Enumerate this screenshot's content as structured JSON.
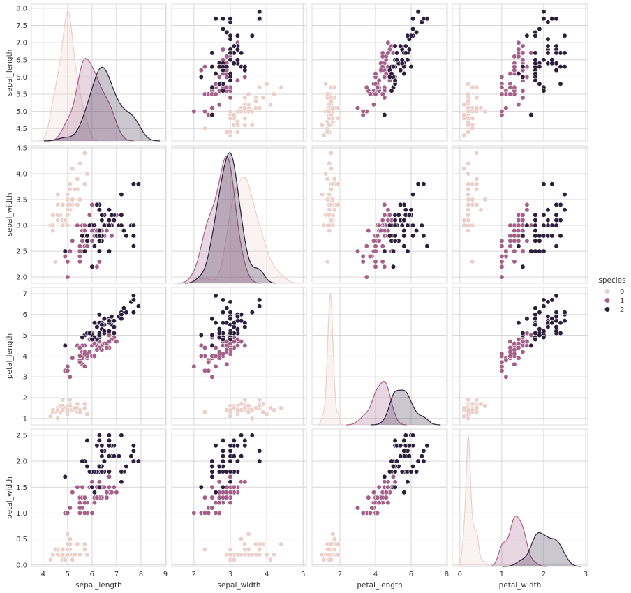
{
  "chart_data": {
    "type": "scatter",
    "title": "",
    "variables": [
      "sepal_length",
      "sepal_width",
      "petal_length",
      "petal_width"
    ],
    "axis_ranges": {
      "sepal_length": [
        3.52,
        9.03
      ],
      "sepal_width": [
        1.39,
        5.09
      ],
      "petal_length": [
        0.43,
        8.04
      ],
      "petal_width": [
        -0.18,
        3.05
      ]
    },
    "y_ranges": {
      "sepal_length": [
        4.14,
        8.12
      ],
      "sepal_width": [
        1.88,
        4.54
      ],
      "petal_length": [
        0.69,
        7.3
      ],
      "petal_width": [
        -0.03,
        2.62
      ]
    },
    "x_ticks": {
      "sepal_length": [
        "4",
        "5",
        "6",
        "7",
        "8",
        "9"
      ],
      "sepal_width": [
        "2",
        "3",
        "4",
        "5"
      ],
      "petal_length": [
        "2",
        "4",
        "6",
        "8"
      ],
      "petal_width": [
        "0",
        "1",
        "2",
        "3"
      ]
    },
    "y_ticks": {
      "sepal_length": [
        "4.5",
        "5.0",
        "5.5",
        "6.0",
        "6.5",
        "7.0",
        "7.5",
        "8.0"
      ],
      "sepal_width": [
        "2.0",
        "2.5",
        "3.0",
        "3.5",
        "4.0",
        "4.5"
      ],
      "petal_length": [
        "1",
        "2",
        "3",
        "4",
        "5",
        "6",
        "7"
      ],
      "petal_width": [
        "0.0",
        "0.5",
        "1.0",
        "1.5",
        "2.0",
        "2.5"
      ]
    },
    "diag_kind": "kde",
    "grid": true,
    "legend": {
      "title": "species",
      "placement": "right",
      "entries": [
        "0",
        "1",
        "2"
      ]
    },
    "colors": [
      "#ebcfcb",
      "#a5608a",
      "#2d1e3e"
    ],
    "series": [
      {
        "name": "0",
        "rows": [
          [
            5.1,
            3.5,
            1.4,
            0.2
          ],
          [
            4.9,
            3.0,
            1.4,
            0.2
          ],
          [
            4.7,
            3.2,
            1.3,
            0.2
          ],
          [
            4.6,
            3.1,
            1.5,
            0.2
          ],
          [
            5.0,
            3.6,
            1.4,
            0.2
          ],
          [
            5.4,
            3.9,
            1.7,
            0.4
          ],
          [
            4.6,
            3.4,
            1.4,
            0.3
          ],
          [
            5.0,
            3.4,
            1.5,
            0.2
          ],
          [
            4.4,
            2.9,
            1.4,
            0.2
          ],
          [
            4.9,
            3.1,
            1.5,
            0.1
          ],
          [
            5.4,
            3.7,
            1.5,
            0.2
          ],
          [
            4.8,
            3.4,
            1.6,
            0.2
          ],
          [
            4.8,
            3.0,
            1.4,
            0.1
          ],
          [
            4.3,
            3.0,
            1.1,
            0.1
          ],
          [
            5.8,
            4.0,
            1.2,
            0.2
          ],
          [
            5.7,
            4.4,
            1.5,
            0.4
          ],
          [
            5.4,
            3.9,
            1.3,
            0.4
          ],
          [
            5.1,
            3.5,
            1.4,
            0.3
          ],
          [
            5.7,
            3.8,
            1.7,
            0.3
          ],
          [
            5.1,
            3.8,
            1.5,
            0.3
          ],
          [
            5.4,
            3.4,
            1.7,
            0.2
          ],
          [
            5.1,
            3.7,
            1.5,
            0.4
          ],
          [
            4.6,
            3.6,
            1.0,
            0.2
          ],
          [
            5.1,
            3.3,
            1.7,
            0.5
          ],
          [
            4.8,
            3.4,
            1.9,
            0.2
          ],
          [
            5.0,
            3.0,
            1.6,
            0.2
          ],
          [
            5.0,
            3.4,
            1.6,
            0.4
          ],
          [
            5.2,
            3.5,
            1.5,
            0.2
          ],
          [
            5.2,
            3.4,
            1.4,
            0.2
          ],
          [
            4.7,
            3.2,
            1.6,
            0.2
          ],
          [
            4.8,
            3.1,
            1.6,
            0.2
          ],
          [
            5.4,
            3.4,
            1.5,
            0.4
          ],
          [
            5.2,
            4.1,
            1.5,
            0.1
          ],
          [
            5.5,
            4.2,
            1.4,
            0.2
          ],
          [
            4.9,
            3.1,
            1.5,
            0.1
          ],
          [
            5.0,
            3.2,
            1.2,
            0.2
          ],
          [
            5.5,
            3.5,
            1.3,
            0.2
          ],
          [
            4.9,
            3.1,
            1.5,
            0.1
          ],
          [
            4.4,
            3.0,
            1.3,
            0.2
          ],
          [
            5.1,
            3.4,
            1.5,
            0.2
          ],
          [
            5.0,
            3.5,
            1.3,
            0.3
          ],
          [
            4.5,
            2.3,
            1.3,
            0.3
          ],
          [
            4.4,
            3.2,
            1.3,
            0.2
          ],
          [
            5.0,
            3.5,
            1.6,
            0.6
          ],
          [
            5.1,
            3.8,
            1.9,
            0.4
          ],
          [
            4.8,
            3.0,
            1.4,
            0.3
          ],
          [
            5.1,
            3.8,
            1.6,
            0.2
          ],
          [
            4.6,
            3.2,
            1.4,
            0.2
          ],
          [
            5.3,
            3.7,
            1.5,
            0.2
          ],
          [
            5.0,
            3.3,
            1.4,
            0.2
          ]
        ]
      },
      {
        "name": "1",
        "rows": [
          [
            7.0,
            3.2,
            4.7,
            1.4
          ],
          [
            6.4,
            3.2,
            4.5,
            1.5
          ],
          [
            6.9,
            3.1,
            4.9,
            1.5
          ],
          [
            5.5,
            2.3,
            4.0,
            1.3
          ],
          [
            6.5,
            2.8,
            4.6,
            1.5
          ],
          [
            5.7,
            2.8,
            4.5,
            1.3
          ],
          [
            6.3,
            3.3,
            4.7,
            1.6
          ],
          [
            4.9,
            2.4,
            3.3,
            1.0
          ],
          [
            6.6,
            2.9,
            4.6,
            1.3
          ],
          [
            5.2,
            2.7,
            3.9,
            1.4
          ],
          [
            5.0,
            2.0,
            3.5,
            1.0
          ],
          [
            5.9,
            3.0,
            4.2,
            1.5
          ],
          [
            6.0,
            2.2,
            4.0,
            1.0
          ],
          [
            6.1,
            2.9,
            4.7,
            1.4
          ],
          [
            5.6,
            2.9,
            3.6,
            1.3
          ],
          [
            6.7,
            3.1,
            4.4,
            1.4
          ],
          [
            5.6,
            3.0,
            4.5,
            1.5
          ],
          [
            5.8,
            2.7,
            4.1,
            1.0
          ],
          [
            6.2,
            2.2,
            4.5,
            1.5
          ],
          [
            5.6,
            2.5,
            3.9,
            1.1
          ],
          [
            5.9,
            3.2,
            4.8,
            1.8
          ],
          [
            6.1,
            2.8,
            4.0,
            1.3
          ],
          [
            6.3,
            2.5,
            4.9,
            1.5
          ],
          [
            6.1,
            2.8,
            4.7,
            1.2
          ],
          [
            6.4,
            2.9,
            4.3,
            1.3
          ],
          [
            6.6,
            3.0,
            4.4,
            1.4
          ],
          [
            6.8,
            2.8,
            4.8,
            1.4
          ],
          [
            6.7,
            3.0,
            5.0,
            1.7
          ],
          [
            6.0,
            2.9,
            4.5,
            1.5
          ],
          [
            5.7,
            2.6,
            3.5,
            1.0
          ],
          [
            5.5,
            2.4,
            3.8,
            1.1
          ],
          [
            5.5,
            2.4,
            3.7,
            1.0
          ],
          [
            5.8,
            2.7,
            3.9,
            1.2
          ],
          [
            6.0,
            2.7,
            5.1,
            1.6
          ],
          [
            5.4,
            3.0,
            4.5,
            1.5
          ],
          [
            6.0,
            3.4,
            4.5,
            1.6
          ],
          [
            6.7,
            3.1,
            4.7,
            1.5
          ],
          [
            6.3,
            2.3,
            4.4,
            1.3
          ],
          [
            5.6,
            3.0,
            4.1,
            1.3
          ],
          [
            5.5,
            2.5,
            4.0,
            1.3
          ],
          [
            5.5,
            2.6,
            4.4,
            1.2
          ],
          [
            6.1,
            3.0,
            4.6,
            1.4
          ],
          [
            5.8,
            2.6,
            4.0,
            1.2
          ],
          [
            5.0,
            2.3,
            3.3,
            1.0
          ],
          [
            5.6,
            2.7,
            4.2,
            1.3
          ],
          [
            5.7,
            3.0,
            4.2,
            1.2
          ],
          [
            5.7,
            2.9,
            4.2,
            1.3
          ],
          [
            6.2,
            2.9,
            4.3,
            1.3
          ],
          [
            5.1,
            2.5,
            3.0,
            1.1
          ],
          [
            5.7,
            2.8,
            4.1,
            1.3
          ]
        ]
      },
      {
        "name": "2",
        "rows": [
          [
            6.3,
            3.3,
            6.0,
            2.5
          ],
          [
            5.8,
            2.7,
            5.1,
            1.9
          ],
          [
            7.1,
            3.0,
            5.9,
            2.1
          ],
          [
            6.3,
            2.9,
            5.6,
            1.8
          ],
          [
            6.5,
            3.0,
            5.8,
            2.2
          ],
          [
            7.6,
            3.0,
            6.6,
            2.1
          ],
          [
            4.9,
            2.5,
            4.5,
            1.7
          ],
          [
            7.3,
            2.9,
            6.3,
            1.8
          ],
          [
            6.7,
            2.5,
            5.8,
            1.8
          ],
          [
            7.2,
            3.6,
            6.1,
            2.5
          ],
          [
            6.5,
            3.2,
            5.1,
            2.0
          ],
          [
            6.4,
            2.7,
            5.3,
            1.9
          ],
          [
            6.8,
            3.0,
            5.5,
            2.1
          ],
          [
            5.7,
            2.5,
            5.0,
            2.0
          ],
          [
            5.8,
            2.8,
            5.1,
            2.4
          ],
          [
            6.4,
            3.2,
            5.3,
            2.3
          ],
          [
            6.5,
            3.0,
            5.5,
            1.8
          ],
          [
            7.7,
            3.8,
            6.7,
            2.2
          ],
          [
            7.7,
            2.6,
            6.9,
            2.3
          ],
          [
            6.0,
            2.2,
            5.0,
            1.5
          ],
          [
            6.9,
            3.2,
            5.7,
            2.3
          ],
          [
            5.6,
            2.8,
            4.9,
            2.0
          ],
          [
            7.7,
            2.8,
            6.7,
            2.0
          ],
          [
            6.3,
            2.7,
            4.9,
            1.8
          ],
          [
            6.7,
            3.3,
            5.7,
            2.1
          ],
          [
            7.2,
            3.2,
            6.0,
            1.8
          ],
          [
            6.2,
            2.8,
            4.8,
            1.8
          ],
          [
            6.1,
            3.0,
            4.9,
            1.8
          ],
          [
            6.4,
            2.8,
            5.6,
            2.1
          ],
          [
            7.2,
            3.0,
            5.8,
            1.6
          ],
          [
            7.4,
            2.8,
            6.1,
            1.9
          ],
          [
            7.9,
            3.8,
            6.4,
            2.0
          ],
          [
            6.4,
            2.8,
            5.6,
            2.2
          ],
          [
            6.3,
            2.8,
            5.1,
            1.5
          ],
          [
            6.1,
            2.6,
            5.6,
            1.4
          ],
          [
            7.7,
            3.0,
            6.1,
            2.3
          ],
          [
            6.3,
            3.4,
            5.6,
            2.4
          ],
          [
            6.4,
            3.1,
            5.5,
            1.8
          ],
          [
            6.0,
            3.0,
            4.8,
            1.8
          ],
          [
            6.9,
            3.1,
            5.4,
            2.1
          ],
          [
            6.7,
            3.1,
            5.6,
            2.4
          ],
          [
            6.9,
            3.1,
            5.1,
            2.3
          ],
          [
            5.8,
            2.7,
            5.1,
            1.9
          ],
          [
            6.8,
            3.2,
            5.9,
            2.3
          ],
          [
            6.7,
            3.3,
            5.7,
            2.5
          ],
          [
            6.7,
            3.0,
            5.2,
            2.3
          ],
          [
            6.3,
            2.5,
            5.0,
            1.9
          ],
          [
            6.5,
            3.0,
            5.2,
            2.0
          ],
          [
            6.2,
            3.4,
            5.4,
            2.3
          ],
          [
            5.9,
            3.0,
            5.1,
            1.8
          ]
        ]
      }
    ]
  }
}
